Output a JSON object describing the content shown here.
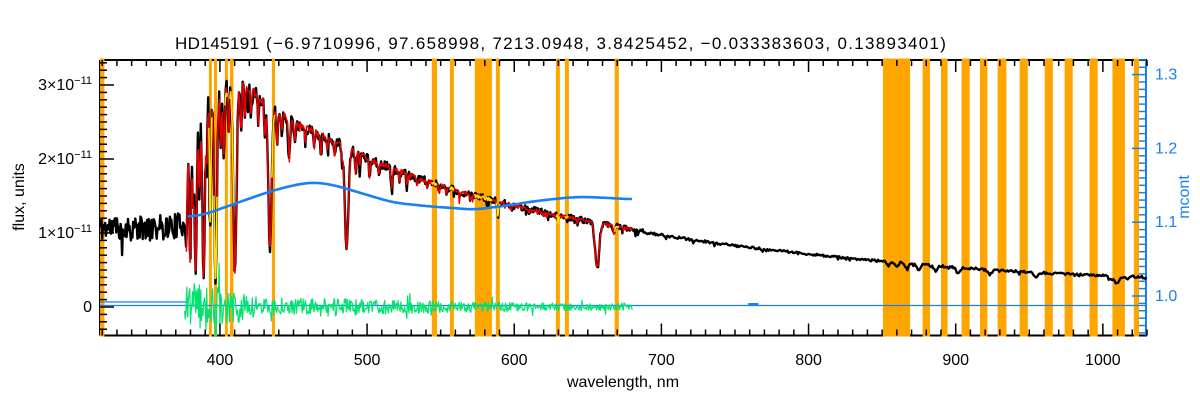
{
  "title": {
    "star": "HD145191",
    "params": "(−6.9710996, 97.658998, 7213.0948, 3.8425452, −0.033383603, 0.13893401)"
  },
  "axes": {
    "x": {
      "label": "wavelength, nm",
      "range": [
        318.5,
        1030
      ],
      "major_ticks": [
        {
          "v": 400,
          "label": "400"
        },
        {
          "v": 500,
          "label": "500"
        },
        {
          "v": 600,
          "label": "600"
        },
        {
          "v": 700,
          "label": "700"
        },
        {
          "v": 800,
          "label": "800"
        },
        {
          "v": 900,
          "label": "900"
        },
        {
          "v": 1000,
          "label": "1000"
        }
      ],
      "minor_step": 10
    },
    "y_left": {
      "label": "flux, units",
      "units": "1e-11",
      "range": [
        -0.39,
        3.34
      ],
      "major_ticks": [
        {
          "v": 0,
          "label": "0"
        },
        {
          "v": 1,
          "mant": "1×10",
          "exp": "−11"
        },
        {
          "v": 2,
          "mant": "2×10",
          "exp": "−11"
        },
        {
          "v": 3,
          "mant": "3×10",
          "exp": "−11"
        }
      ],
      "minor_step": 0.1
    },
    "y_right": {
      "label": "mcont",
      "range": [
        0.947,
        1.32
      ],
      "major_ticks": [
        {
          "v": 1.0,
          "label": "1.0"
        },
        {
          "v": 1.1,
          "label": "1.1"
        },
        {
          "v": 1.2,
          "label": "1.2"
        },
        {
          "v": 1.3,
          "label": "1.3"
        }
      ],
      "minor_step": 0.01
    }
  },
  "colors": {
    "observed": "#000000",
    "model": "#e80000",
    "masked_model": "#ffe100",
    "mcont": "#1880f0",
    "residual": "#00e36e",
    "band": "#ffa500",
    "frame": "#000000",
    "background": "#ffffff"
  },
  "chart_data": {
    "type": "line",
    "xlabel": "wavelength, nm",
    "ylabel_left": "flux, units",
    "ylabel_right": "mcont",
    "x_range_nm": [
      318.5,
      1030
    ],
    "flux_range_1e11": [
      -0.39,
      3.34
    ],
    "mcont_range": [
      0.947,
      1.32
    ],
    "series": [
      {
        "name": "observed-spectrum",
        "color_key": "observed",
        "style": "noisy-line",
        "range_nm": [
          318.5,
          1030
        ],
        "envelope": [
          [
            318.5,
            1.07
          ],
          [
            330,
            1.08
          ],
          [
            345,
            1.06
          ],
          [
            360,
            1.08
          ],
          [
            372,
            1.1
          ],
          [
            375,
            1.12
          ],
          [
            376.5,
            1.45
          ],
          [
            378,
            2.0
          ],
          [
            380,
            2.35
          ],
          [
            382,
            2.5
          ],
          [
            385,
            2.55
          ],
          [
            388,
            2.62
          ],
          [
            391,
            2.72
          ],
          [
            394,
            2.78
          ],
          [
            397,
            2.82
          ],
          [
            400,
            2.88
          ],
          [
            403,
            2.9
          ],
          [
            406,
            2.93
          ],
          [
            409,
            2.88
          ],
          [
            412,
            2.95
          ],
          [
            415,
            3.0
          ],
          [
            418,
            2.97
          ],
          [
            421,
            2.93
          ],
          [
            424,
            2.88
          ],
          [
            428,
            2.82
          ],
          [
            432,
            2.75
          ],
          [
            436,
            2.68
          ],
          [
            440,
            2.62
          ],
          [
            445,
            2.56
          ],
          [
            450,
            2.5
          ],
          [
            456,
            2.44
          ],
          [
            462,
            2.39
          ],
          [
            468,
            2.33
          ],
          [
            474,
            2.28
          ],
          [
            480,
            2.22
          ],
          [
            486,
            2.15
          ],
          [
            492,
            2.1
          ],
          [
            498,
            2.04
          ],
          [
            505,
            1.97
          ],
          [
            512,
            1.91
          ],
          [
            520,
            1.85
          ],
          [
            528,
            1.79
          ],
          [
            536,
            1.73
          ],
          [
            544,
            1.68
          ],
          [
            552,
            1.63
          ],
          [
            560,
            1.58
          ],
          [
            568,
            1.53
          ],
          [
            576,
            1.49
          ],
          [
            584,
            1.45
          ],
          [
            592,
            1.41
          ],
          [
            600,
            1.37
          ],
          [
            608,
            1.33
          ],
          [
            616,
            1.3
          ],
          [
            624,
            1.26
          ],
          [
            632,
            1.23
          ],
          [
            640,
            1.2
          ],
          [
            648,
            1.17
          ],
          [
            656,
            1.14
          ],
          [
            664,
            1.11
          ],
          [
            672,
            1.08
          ],
          [
            680,
            1.05
          ],
          [
            690,
            1.01
          ],
          [
            700,
            0.975
          ],
          [
            712,
            0.935
          ],
          [
            724,
            0.9
          ],
          [
            736,
            0.865
          ],
          [
            748,
            0.835
          ],
          [
            760,
            0.805
          ],
          [
            772,
            0.775
          ],
          [
            784,
            0.75
          ],
          [
            796,
            0.725
          ],
          [
            808,
            0.7
          ],
          [
            820,
            0.675
          ],
          [
            832,
            0.65
          ],
          [
            844,
            0.63
          ],
          [
            856,
            0.61
          ],
          [
            868,
            0.59
          ],
          [
            880,
            0.57
          ],
          [
            892,
            0.55
          ],
          [
            904,
            0.53
          ],
          [
            916,
            0.515
          ],
          [
            928,
            0.5
          ],
          [
            940,
            0.485
          ],
          [
            952,
            0.47
          ],
          [
            964,
            0.455
          ],
          [
            976,
            0.445
          ],
          [
            988,
            0.435
          ],
          [
            1000,
            0.425
          ],
          [
            1012,
            0.415
          ],
          [
            1022,
            0.41
          ],
          [
            1030,
            0.4
          ]
        ],
        "noise_amp": [
          [
            318.5,
            0.17
          ],
          [
            374,
            0.17
          ],
          [
            377,
            0.22
          ],
          [
            385,
            0.2
          ],
          [
            400,
            0.17
          ],
          [
            415,
            0.12
          ],
          [
            430,
            0.09
          ],
          [
            450,
            0.08
          ],
          [
            480,
            0.07
          ],
          [
            520,
            0.06
          ],
          [
            560,
            0.05
          ],
          [
            600,
            0.045
          ],
          [
            650,
            0.04
          ],
          [
            680,
            0.035
          ],
          [
            700,
            0.018
          ],
          [
            800,
            0.015
          ],
          [
            900,
            0.015
          ],
          [
            1030,
            0.015
          ]
        ]
      },
      {
        "name": "model-spectrum",
        "color_key": "model",
        "style": "noisy-line",
        "range_nm": [
          377.2,
          680.5
        ],
        "noise_scale": 0.55
      },
      {
        "name": "masked-model-segments",
        "color_key": "masked_model",
        "style": "noisy-line",
        "note": "model fit drawn in yellow inside masked bands",
        "noise_scale": 0.5
      },
      {
        "name": "mcont-continuum-ratio",
        "color_key": "mcont",
        "style": "smooth-line",
        "axis": "right",
        "points": [
          [
            378,
            1.107
          ],
          [
            385,
            1.109
          ],
          [
            392,
            1.112
          ],
          [
            400,
            1.118
          ],
          [
            410,
            1.125
          ],
          [
            420,
            1.132
          ],
          [
            430,
            1.139
          ],
          [
            440,
            1.145
          ],
          [
            450,
            1.15
          ],
          [
            458,
            1.153
          ],
          [
            465,
            1.154
          ],
          [
            472,
            1.152
          ],
          [
            480,
            1.149
          ],
          [
            490,
            1.143
          ],
          [
            500,
            1.137
          ],
          [
            510,
            1.131
          ],
          [
            520,
            1.126
          ],
          [
            530,
            1.124
          ],
          [
            545,
            1.121
          ],
          [
            560,
            1.119
          ],
          [
            572,
            1.117
          ],
          [
            585,
            1.12
          ],
          [
            600,
            1.124
          ],
          [
            612,
            1.128
          ],
          [
            625,
            1.131
          ],
          [
            640,
            1.134
          ],
          [
            652,
            1.134
          ],
          [
            662,
            1.133
          ],
          [
            672,
            1.132
          ],
          [
            680,
            1.131
          ]
        ]
      },
      {
        "name": "residuals",
        "color_key": "residual",
        "style": "noisy-line",
        "range_nm": [
          376,
          680.5
        ],
        "center": 0.0,
        "noise_amp": [
          [
            376,
            0.22
          ],
          [
            380,
            0.42
          ],
          [
            386,
            0.3
          ],
          [
            394,
            0.32
          ],
          [
            402,
            0.28
          ],
          [
            410,
            0.26
          ],
          [
            418,
            0.18
          ],
          [
            428,
            0.14
          ],
          [
            440,
            0.12
          ],
          [
            455,
            0.12
          ],
          [
            470,
            0.13
          ],
          [
            485,
            0.12
          ],
          [
            500,
            0.1
          ],
          [
            515,
            0.095
          ],
          [
            530,
            0.09
          ],
          [
            545,
            0.085
          ],
          [
            560,
            0.08
          ],
          [
            580,
            0.07
          ],
          [
            600,
            0.06
          ],
          [
            620,
            0.055
          ],
          [
            640,
            0.05
          ],
          [
            660,
            0.045
          ],
          [
            672,
            0.06
          ],
          [
            680,
            0.04
          ]
        ]
      }
    ],
    "absorption_lines": [
      [
        377.1,
        0.5,
        0.55
      ],
      [
        379.8,
        0.75,
        0.6
      ],
      [
        381.8,
        0.45,
        0.5
      ],
      [
        383.5,
        0.83,
        0.7
      ],
      [
        386.0,
        0.4,
        0.5
      ],
      [
        388.9,
        0.87,
        0.8
      ],
      [
        391.0,
        0.3,
        0.4
      ],
      [
        393.4,
        0.6,
        0.5
      ],
      [
        397.0,
        0.88,
        0.9
      ],
      [
        400.5,
        0.25,
        0.4
      ],
      [
        402.6,
        0.3,
        0.5
      ],
      [
        406.0,
        0.22,
        0.4
      ],
      [
        410.2,
        0.84,
        1.0
      ],
      [
        414.4,
        0.22,
        0.5
      ],
      [
        417.0,
        0.15,
        0.4
      ],
      [
        421.0,
        0.12,
        0.4
      ],
      [
        426.0,
        0.12,
        0.4
      ],
      [
        430.5,
        0.18,
        0.5
      ],
      [
        434.0,
        0.71,
        1.1
      ],
      [
        438.8,
        0.18,
        0.5
      ],
      [
        442.0,
        0.1,
        0.4
      ],
      [
        447.1,
        0.22,
        0.5
      ],
      [
        451.0,
        0.1,
        0.4
      ],
      [
        458.0,
        0.1,
        0.4
      ],
      [
        464.0,
        0.1,
        0.4
      ],
      [
        468.6,
        0.12,
        0.4
      ],
      [
        473.0,
        0.08,
        0.4
      ],
      [
        478.0,
        0.1,
        0.4
      ],
      [
        483.0,
        0.1,
        0.4
      ],
      [
        486.1,
        0.63,
        1.2
      ],
      [
        492.2,
        0.14,
        0.5
      ],
      [
        495.0,
        0.08,
        0.4
      ],
      [
        501.6,
        0.12,
        0.5
      ],
      [
        508.0,
        0.08,
        0.4
      ],
      [
        516.7,
        0.13,
        0.6
      ],
      [
        522.0,
        0.08,
        0.4
      ],
      [
        527.0,
        0.1,
        0.4
      ],
      [
        534.0,
        0.07,
        0.4
      ],
      [
        541.0,
        0.07,
        0.4
      ],
      [
        549.0,
        0.07,
        0.4
      ],
      [
        554.0,
        0.06,
        0.4
      ],
      [
        563.0,
        0.06,
        0.4
      ],
      [
        570.0,
        0.06,
        0.4
      ],
      [
        588.9,
        0.14,
        0.5
      ],
      [
        598.0,
        0.05,
        0.4
      ],
      [
        610.0,
        0.05,
        0.4
      ],
      [
        620.0,
        0.05,
        0.4
      ],
      [
        630.0,
        0.05,
        0.4
      ],
      [
        643.0,
        0.05,
        0.4
      ],
      [
        656.3,
        0.53,
        1.4
      ],
      [
        667.8,
        0.1,
        0.5
      ],
      [
        854.2,
        0.1,
        1.0
      ],
      [
        859.8,
        0.1,
        1.0
      ],
      [
        866.5,
        0.12,
        1.1
      ],
      [
        875.0,
        0.15,
        1.2
      ],
      [
        886.3,
        0.13,
        1.2
      ],
      [
        901.5,
        0.14,
        1.3
      ],
      [
        923.1,
        0.13,
        1.5
      ],
      [
        954.6,
        0.12,
        1.5
      ],
      [
        1005.0,
        0.1,
        1.5
      ],
      [
        1009.5,
        0.22,
        1.8
      ],
      [
        1017.0,
        0.08,
        1.2
      ]
    ],
    "masked_bands_nm": [
      [
        318.5,
        321.5
      ],
      [
        392.5,
        394.5
      ],
      [
        396,
        398
      ],
      [
        403.4,
        405.1
      ],
      [
        406.8,
        409.2
      ],
      [
        435.3,
        437.4
      ],
      [
        544,
        547.5
      ],
      [
        556.3,
        559
      ],
      [
        573.2,
        584.8
      ],
      [
        587.5,
        590.2
      ],
      [
        628.3,
        631
      ],
      [
        634.4,
        637.1
      ],
      [
        668.3,
        671.1
      ],
      [
        850.5,
        869
      ],
      [
        877.5,
        882.5
      ],
      [
        890,
        894.5
      ],
      [
        904,
        909.5
      ],
      [
        916.5,
        921.5
      ],
      [
        928.5,
        934.5
      ],
      [
        943.5,
        949
      ],
      [
        960.5,
        966
      ],
      [
        974,
        979.5
      ],
      [
        991,
        996.5
      ],
      [
        1006.5,
        1015
      ],
      [
        1021,
        1024.5
      ]
    ],
    "zero_line": {
      "flux": 0.0,
      "extra_segment_range_nm": [
        318.5,
        378
      ],
      "cap_nm": 378.0,
      "dash_nm": [
        759,
        766
      ]
    }
  }
}
